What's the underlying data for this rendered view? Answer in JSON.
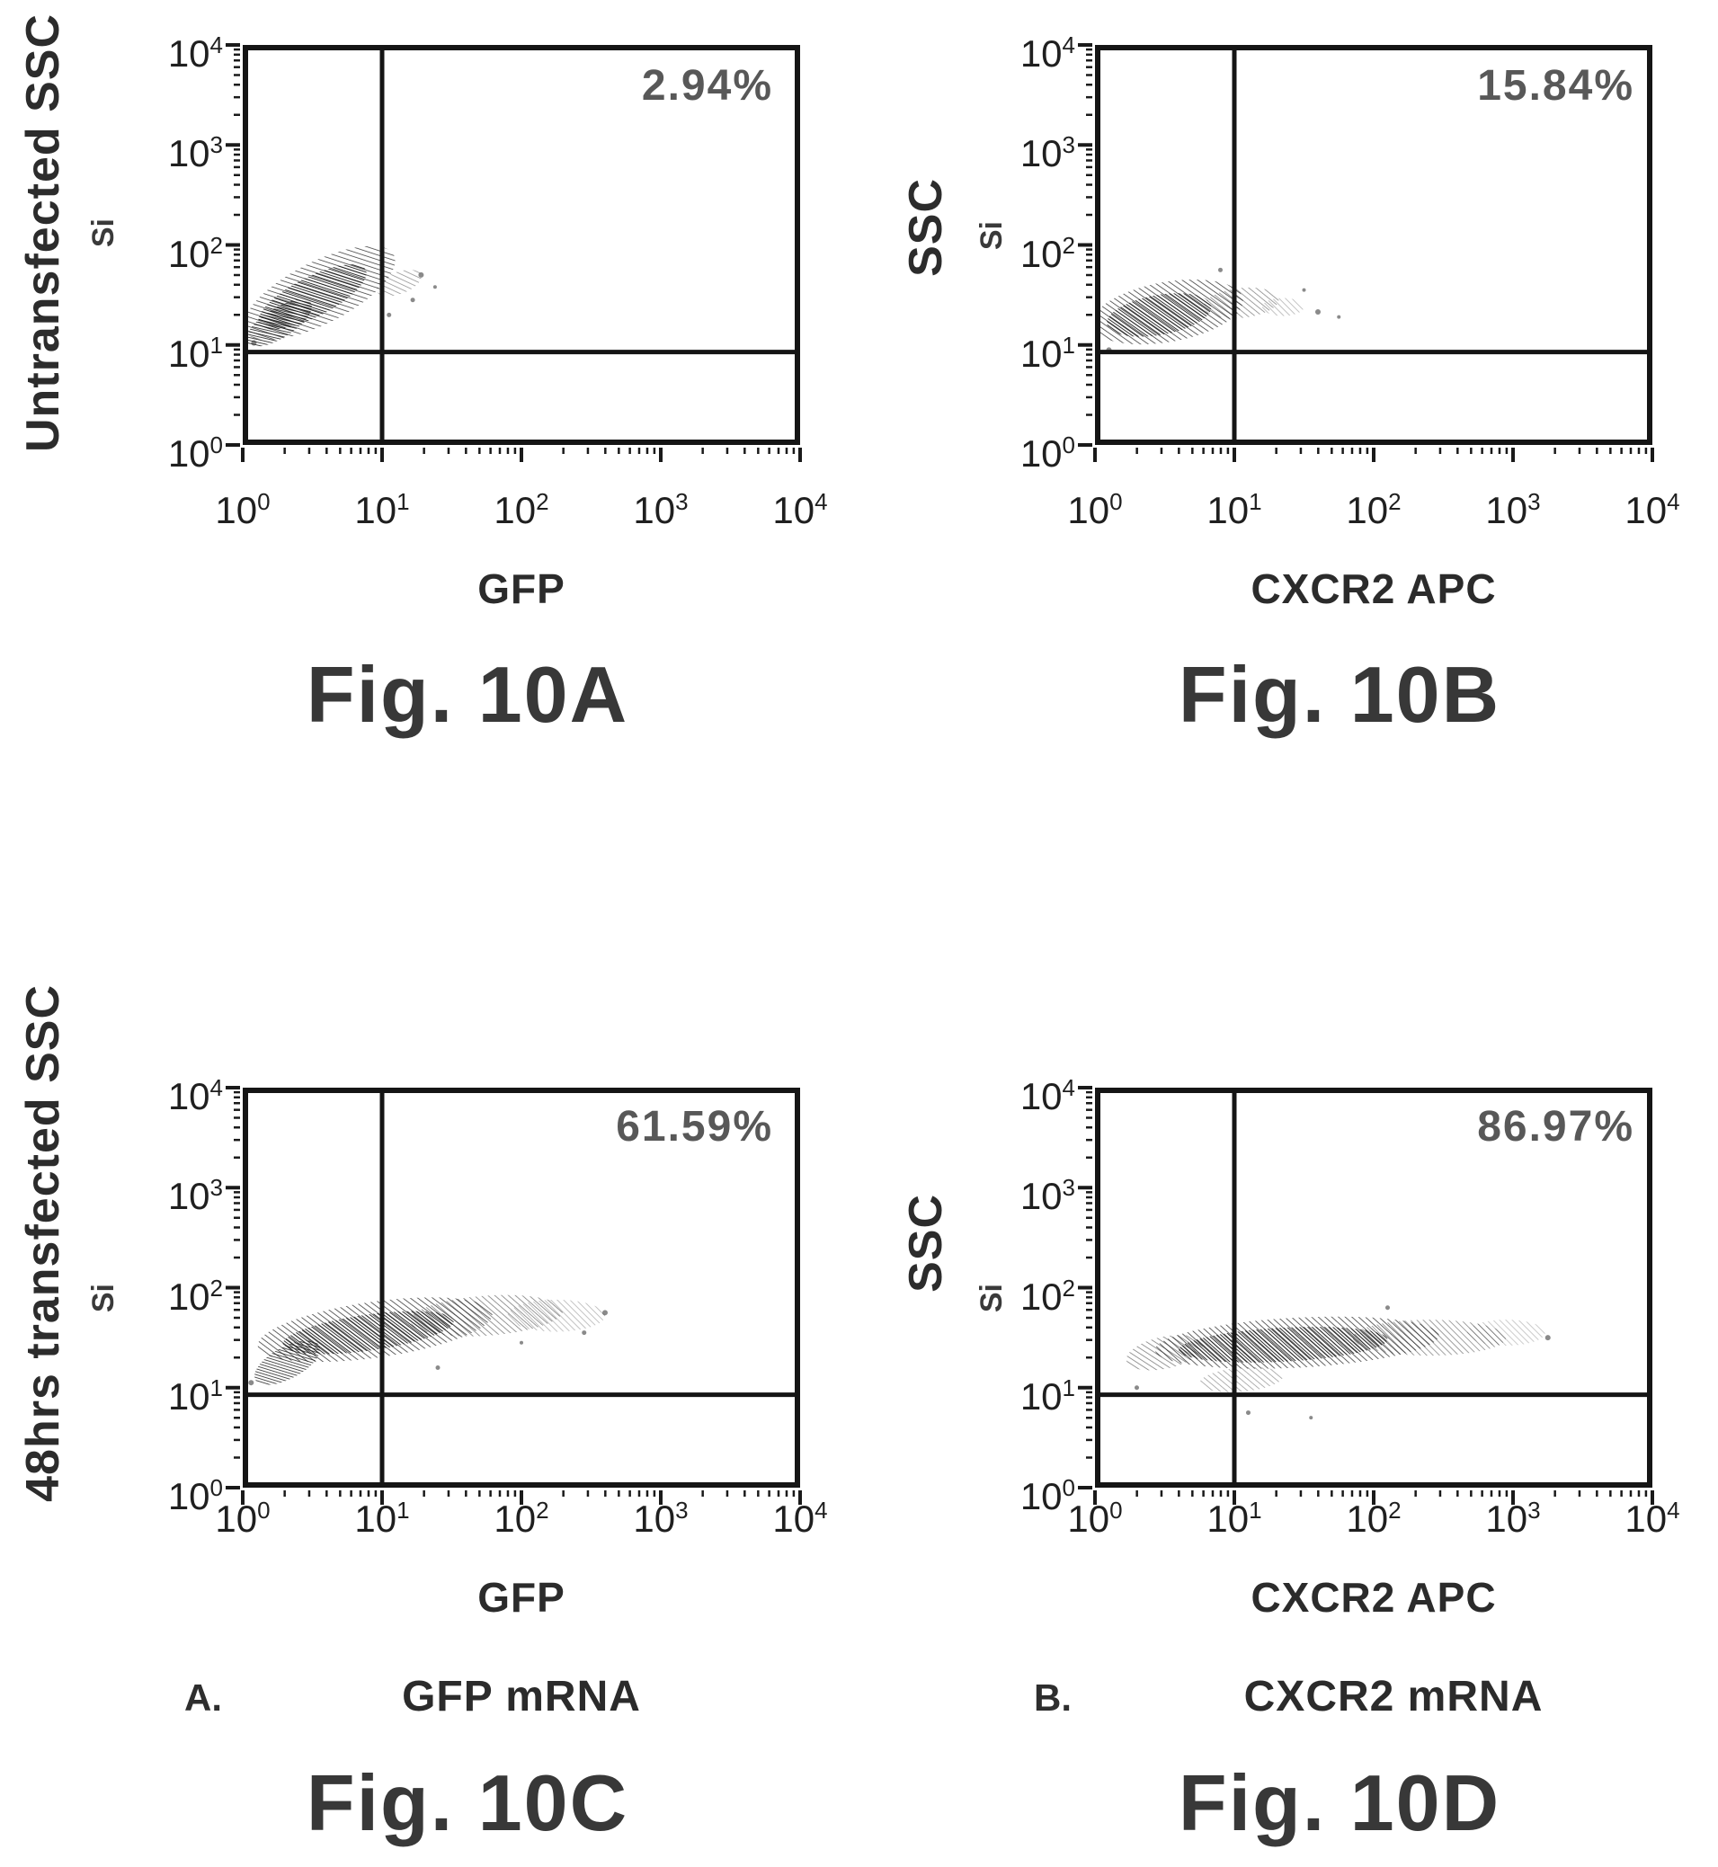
{
  "chart_data": [
    {
      "panel": "10A",
      "type": "scatter",
      "caption": "Fig. 10A",
      "outer_ylabel": "Untransfected SSC",
      "inner_ylabel": "Si",
      "xlabel": "GFP",
      "annotation": "2.94%",
      "x_scale": "log",
      "y_scale": "log",
      "x_range": [
        1,
        10000
      ],
      "y_range": [
        1,
        10000
      ],
      "tick_base": "10",
      "tick_exponents": [
        0,
        1,
        2,
        3,
        4
      ],
      "gate_x": 10,
      "gate_y": 8.5,
      "clusters": [
        {
          "cx": 0.55,
          "cy": 1.52,
          "rx": 0.6,
          "ry": 0.31,
          "rot": -27,
          "style": "light",
          "opacity": 0.88
        },
        {
          "cx": 0.5,
          "cy": 1.48,
          "rx": 0.43,
          "ry": 0.2,
          "rot": -27,
          "style": "dense",
          "opacity": 0.95
        },
        {
          "cx": 0.26,
          "cy": 1.22,
          "rx": 0.27,
          "ry": 0.15,
          "rot": -32,
          "style": "dense",
          "opacity": 0.85
        },
        {
          "cx": 1.12,
          "cy": 1.62,
          "rx": 0.17,
          "ry": 0.11,
          "rot": -20,
          "style": "light",
          "opacity": 0.5
        }
      ],
      "specks": [
        [
          1.28,
          1.7,
          3
        ],
        [
          1.22,
          1.45,
          2.5
        ],
        [
          1.05,
          1.3,
          2.5
        ],
        [
          0.08,
          1.02,
          3
        ],
        [
          1.38,
          1.58,
          2
        ]
      ]
    },
    {
      "panel": "10B",
      "type": "scatter",
      "caption": "Fig. 10B",
      "outer_ylabel": "SSC",
      "inner_ylabel": "Si",
      "xlabel": "CXCR2 APC",
      "annotation": "15.84%",
      "x_scale": "log",
      "y_scale": "log",
      "x_range": [
        1,
        10000
      ],
      "y_range": [
        1,
        10000
      ],
      "tick_base": "10",
      "tick_exponents": [
        0,
        1,
        2,
        3,
        4
      ],
      "gate_x": 10,
      "gate_y": 8.5,
      "clusters": [
        {
          "cx": 0.52,
          "cy": 1.33,
          "rx": 0.55,
          "ry": 0.3,
          "rot": -10,
          "style": "light",
          "opacity": 0.9
        },
        {
          "cx": 0.46,
          "cy": 1.3,
          "rx": 0.38,
          "ry": 0.2,
          "rot": -10,
          "style": "dense",
          "opacity": 0.95
        },
        {
          "cx": 1.05,
          "cy": 1.42,
          "rx": 0.27,
          "ry": 0.15,
          "rot": -6,
          "style": "light",
          "opacity": 0.55
        },
        {
          "cx": 1.35,
          "cy": 1.38,
          "rx": 0.15,
          "ry": 0.09,
          "rot": 0,
          "style": "light",
          "opacity": 0.35
        }
      ],
      "specks": [
        [
          1.6,
          1.33,
          3
        ],
        [
          1.75,
          1.28,
          2
        ],
        [
          0.1,
          0.95,
          3
        ],
        [
          1.5,
          1.55,
          2
        ],
        [
          0.9,
          1.75,
          2.5
        ]
      ]
    },
    {
      "panel": "10C",
      "type": "scatter",
      "caption": "Fig. 10C",
      "outer_ylabel": "48hrs transfected SSC",
      "inner_ylabel": "Si",
      "xlabel": "GFP",
      "sub_label_prefix": "A.",
      "sub_label": "GFP mRNA",
      "annotation": "61.59%",
      "x_scale": "log",
      "y_scale": "log",
      "x_range": [
        1,
        10000
      ],
      "y_range": [
        1,
        10000
      ],
      "tick_base": "10",
      "tick_exponents": [
        0,
        1,
        2,
        3,
        4
      ],
      "gate_x": 10,
      "gate_y": 8.5,
      "clusters": [
        {
          "cx": 0.95,
          "cy": 1.58,
          "rx": 0.85,
          "ry": 0.28,
          "rot": -8,
          "style": "light",
          "opacity": 0.9
        },
        {
          "cx": 0.9,
          "cy": 1.55,
          "rx": 0.62,
          "ry": 0.18,
          "rot": -8,
          "style": "dense",
          "opacity": 0.95
        },
        {
          "cx": 0.32,
          "cy": 1.25,
          "rx": 0.26,
          "ry": 0.16,
          "rot": -28,
          "style": "dense",
          "opacity": 0.8
        },
        {
          "cx": 1.75,
          "cy": 1.72,
          "rx": 0.55,
          "ry": 0.2,
          "rot": -4,
          "style": "light",
          "opacity": 0.6
        },
        {
          "cx": 2.25,
          "cy": 1.72,
          "rx": 0.35,
          "ry": 0.16,
          "rot": 0,
          "style": "light",
          "opacity": 0.35
        }
      ],
      "specks": [
        [
          2.6,
          1.75,
          3
        ],
        [
          2.45,
          1.55,
          2.5
        ],
        [
          0.06,
          1.05,
          3
        ],
        [
          1.4,
          1.2,
          2.5
        ],
        [
          2.0,
          1.45,
          2
        ]
      ]
    },
    {
      "panel": "10D",
      "type": "scatter",
      "caption": "Fig. 10D",
      "outer_ylabel": "SSC",
      "inner_ylabel": "Si",
      "xlabel": "CXCR2 APC",
      "sub_label_prefix": "B.",
      "sub_label": "CXCR2 mRNA",
      "annotation": "86.97%",
      "x_scale": "log",
      "y_scale": "log",
      "x_range": [
        1,
        10000
      ],
      "y_range": [
        1,
        10000
      ],
      "tick_base": "10",
      "tick_exponents": [
        0,
        1,
        2,
        3,
        4
      ],
      "gate_x": 10,
      "gate_y": 8.5,
      "clusters": [
        {
          "cx": 1.45,
          "cy": 1.45,
          "rx": 1.02,
          "ry": 0.25,
          "rot": -3,
          "style": "light",
          "opacity": 0.9
        },
        {
          "cx": 1.35,
          "cy": 1.43,
          "rx": 0.75,
          "ry": 0.17,
          "rot": -3,
          "style": "dense",
          "opacity": 0.95
        },
        {
          "cx": 2.4,
          "cy": 1.5,
          "rx": 0.55,
          "ry": 0.18,
          "rot": 0,
          "style": "light",
          "opacity": 0.55
        },
        {
          "cx": 2.95,
          "cy": 1.55,
          "rx": 0.28,
          "ry": 0.13,
          "rot": 0,
          "style": "light",
          "opacity": 0.3
        },
        {
          "cx": 0.5,
          "cy": 1.35,
          "rx": 0.28,
          "ry": 0.16,
          "rot": -12,
          "style": "light",
          "opacity": 0.6
        },
        {
          "cx": 1.05,
          "cy": 1.08,
          "rx": 0.3,
          "ry": 0.12,
          "rot": -5,
          "style": "light",
          "opacity": 0.45
        }
      ],
      "specks": [
        [
          3.25,
          1.5,
          3
        ],
        [
          1.1,
          0.75,
          2.5
        ],
        [
          0.3,
          1.0,
          2.5
        ],
        [
          2.1,
          1.8,
          2.5
        ],
        [
          1.55,
          0.7,
          2
        ]
      ]
    }
  ]
}
